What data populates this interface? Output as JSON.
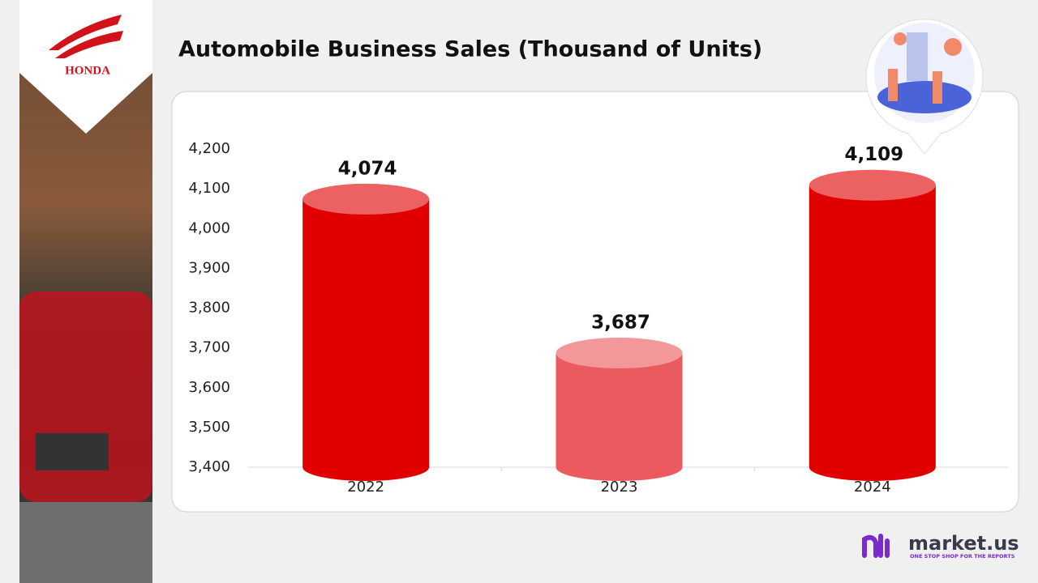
{
  "brand": "HONDA",
  "footer": {
    "logo": "market.us",
    "tagline": "ONE STOP SHOP FOR THE REPORTS"
  },
  "chart_data": {
    "type": "cylinder",
    "title": "Automobile Business Sales (Thousand of Units)",
    "categories": [
      "2022",
      "2023",
      "2024"
    ],
    "values": [
      4074,
      3687,
      4109
    ],
    "value_labels": [
      "4,074",
      "3,687",
      "4,109"
    ],
    "colors": [
      "#e10000",
      "#ea5a5e",
      "#e10000"
    ],
    "ylim": [
      3400,
      4200
    ],
    "yticks": [
      {
        "value": 3400,
        "label": "3,400"
      },
      {
        "value": 3500,
        "label": "3,500"
      },
      {
        "value": 3600,
        "label": "3,600"
      },
      {
        "value": 3700,
        "label": "3,700"
      },
      {
        "value": 3800,
        "label": "3,800"
      },
      {
        "value": 3900,
        "label": "3,900"
      },
      {
        "value": 4000,
        "label": "4,000"
      },
      {
        "value": 4100,
        "label": "4,100"
      },
      {
        "value": 4200,
        "label": "4,200"
      }
    ],
    "grid": false
  }
}
